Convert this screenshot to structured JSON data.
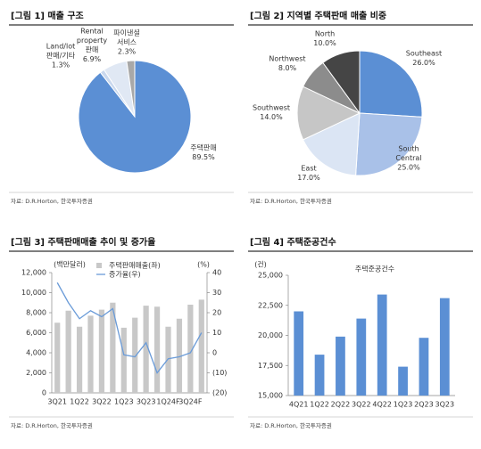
{
  "chart_data": [
    {
      "type": "pie",
      "title": "[그림 1] 매출 구조",
      "categories": [
        [
          "주택판매"
        ],
        [
          "Land/lot",
          "판매/기타"
        ],
        [
          "Rental",
          "property",
          "판매"
        ],
        [
          "파이낸셜",
          "서비스"
        ]
      ],
      "values": [
        89.5,
        1.3,
        6.9,
        2.3
      ],
      "value_labels": [
        "89.5%",
        "1.3%",
        "6.9%",
        "2.3%"
      ],
      "colors": [
        "#5b8fd4",
        "#c9d8ee",
        "#e0e8f4",
        "#a8a8a8"
      ],
      "source": "자료: D.R.Horton, 한국투자증권"
    },
    {
      "type": "pie",
      "title": "[그림 2]  지역별 주택판매 매출 비중",
      "categories": [
        [
          "Southeast"
        ],
        [
          "South",
          "Central"
        ],
        [
          "East"
        ],
        [
          "Southwest"
        ],
        [
          "Northwest"
        ],
        [
          "North"
        ]
      ],
      "values": [
        26.0,
        25.0,
        17.0,
        14.0,
        8.0,
        10.0
      ],
      "value_labels": [
        "26.0%",
        "25.0%",
        "17.0%",
        "14.0%",
        "8.0%",
        "10.0%"
      ],
      "colors": [
        "#5b8fd4",
        "#a9c1e8",
        "#dbe5f4",
        "#c6c6c6",
        "#8c8c8c",
        "#454545"
      ],
      "source": "자료: D.R.Horton, 한국투자증권"
    },
    {
      "type": "combo",
      "title": "[그림 3] 주택판매매출 추이 및 증가율",
      "y_label": "(백만달러)",
      "y2_label": "(%)",
      "categories": [
        "3Q21",
        null,
        "1Q22",
        null,
        "3Q22",
        null,
        "1Q23",
        null,
        "3Q23",
        null,
        "1Q24F",
        null,
        "3Q24F",
        null
      ],
      "series": [
        {
          "name": "주택판매매출(좌)",
          "type": "bar",
          "color": "#c8c8c8",
          "values": [
            7000,
            8200,
            6600,
            7700,
            8300,
            9000,
            6500,
            7500,
            8700,
            8600,
            6600,
            7400,
            8800,
            9300
          ]
        },
        {
          "name": "증가율(우)",
          "type": "line",
          "axis": "y2",
          "color": "#6a9bd8",
          "values": [
            35,
            25,
            17,
            21,
            18,
            22,
            -1,
            -2,
            5,
            -10,
            -3,
            -2,
            0,
            10
          ]
        }
      ],
      "ylim": [
        0,
        12000
      ],
      "yticks": [
        0,
        {
          "value": 2000,
          "label": "2,000"
        },
        {
          "value": 4000,
          "label": "4,000"
        },
        {
          "value": 6000,
          "label": "6,000"
        },
        {
          "value": 8000,
          "label": "8,000"
        },
        {
          "value": 10000,
          "label": "10,000"
        },
        {
          "value": 12000,
          "label": "12,000"
        }
      ],
      "y2lim": [
        -20,
        40
      ],
      "y2ticks": [
        {
          "value": -20,
          "label": "(20)"
        },
        {
          "value": -10,
          "label": "(10)"
        },
        0,
        10,
        20,
        30,
        40
      ],
      "source": "자료: D.R.Horton, 한국투자증권"
    },
    {
      "type": "bar",
      "title": "[그림 4] 주택준공건수",
      "y_label": "(건)",
      "categories": [
        "4Q21",
        "1Q22",
        "2Q22",
        "3Q22",
        "4Q22",
        "1Q23",
        "2Q23",
        "3Q23"
      ],
      "series": [
        {
          "name": "주택준공건수",
          "color": "#5b8fd4",
          "values": [
            22000,
            18400,
            19900,
            21400,
            23400,
            17400,
            19800,
            23100
          ]
        }
      ],
      "ylim": [
        15000,
        25000
      ],
      "yticks": [
        {
          "value": 15000,
          "label": "15,000"
        },
        {
          "value": 17500,
          "label": "17,500"
        },
        {
          "value": 20000,
          "label": "20,000"
        },
        {
          "value": 22500,
          "label": "22,500"
        },
        {
          "value": 25000,
          "label": "25,000"
        }
      ],
      "source": "자료: D.R.Horton, 한국투자증권"
    }
  ]
}
